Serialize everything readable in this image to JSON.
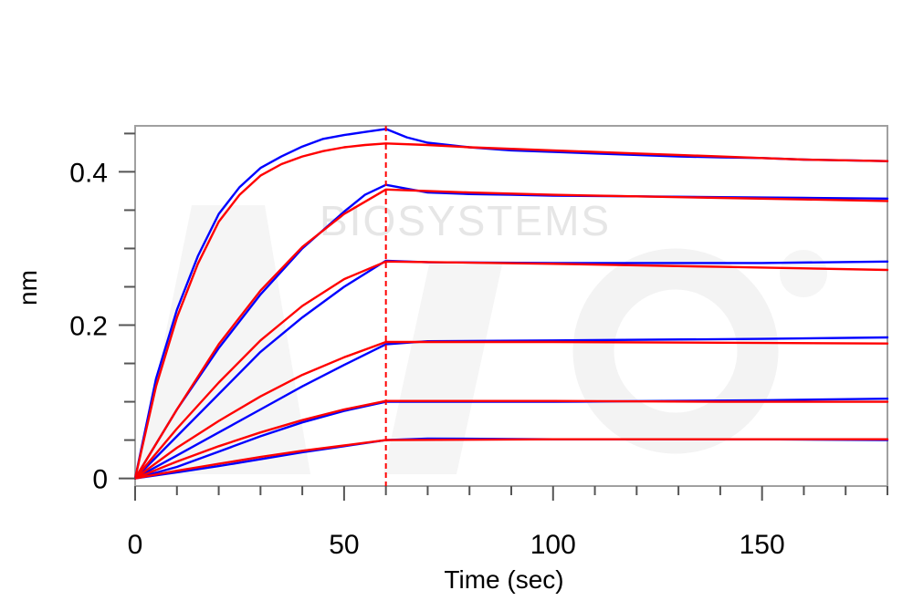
{
  "chart_data": {
    "type": "line",
    "title": "",
    "xlabel": "Time (sec)",
    "ylabel": "nm",
    "xlim": [
      0,
      180
    ],
    "ylim": [
      -0.01,
      0.46
    ],
    "x_ticks": [
      0,
      50,
      100,
      150
    ],
    "x_tick_labels": [
      "0",
      "50",
      "100",
      "150"
    ],
    "y_ticks": [
      0,
      0.2,
      0.4
    ],
    "y_tick_labels": [
      "0",
      "0.2",
      "0.4"
    ],
    "grid": false,
    "legend": "none",
    "annotations": [
      {
        "type": "vertical-dashed-line",
        "x": 60,
        "color": "#ff0000"
      }
    ],
    "watermark": "BIOSYSTEMS",
    "colors": {
      "measured": "#0000ff",
      "fit": "#ff0000",
      "frame": "#a0a0a0"
    },
    "series": [
      {
        "role": "measured",
        "color": "#0000ff",
        "x": [
          0,
          5,
          10,
          15,
          20,
          25,
          30,
          35,
          40,
          45,
          50,
          55,
          60,
          65,
          70,
          80,
          90,
          100,
          110,
          120,
          130,
          140,
          150,
          160,
          170,
          180
        ],
        "y": [
          0.0,
          0.13,
          0.22,
          0.29,
          0.345,
          0.38,
          0.405,
          0.42,
          0.433,
          0.443,
          0.448,
          0.452,
          0.456,
          0.445,
          0.438,
          0.432,
          0.428,
          0.426,
          0.424,
          0.422,
          0.42,
          0.419,
          0.418,
          0.416,
          0.415,
          0.414
        ]
      },
      {
        "role": "fit",
        "color": "#ff0000",
        "x": [
          0,
          5,
          10,
          15,
          20,
          25,
          30,
          35,
          40,
          45,
          50,
          55,
          60,
          70,
          80,
          90,
          100,
          110,
          120,
          130,
          140,
          150,
          160,
          170,
          180
        ],
        "y": [
          0.0,
          0.12,
          0.21,
          0.28,
          0.335,
          0.37,
          0.395,
          0.41,
          0.42,
          0.427,
          0.432,
          0.435,
          0.437,
          0.435,
          0.432,
          0.43,
          0.428,
          0.426,
          0.424,
          0.422,
          0.42,
          0.418,
          0.416,
          0.415,
          0.414
        ]
      },
      {
        "role": "measured",
        "color": "#0000ff",
        "x": [
          0,
          10,
          20,
          30,
          40,
          50,
          55,
          60,
          65,
          70,
          80,
          90,
          100,
          120,
          140,
          160,
          180
        ],
        "y": [
          0.0,
          0.09,
          0.17,
          0.24,
          0.3,
          0.348,
          0.37,
          0.383,
          0.378,
          0.373,
          0.371,
          0.37,
          0.369,
          0.368,
          0.367,
          0.366,
          0.365
        ]
      },
      {
        "role": "fit",
        "color": "#ff0000",
        "x": [
          0,
          10,
          20,
          30,
          40,
          50,
          60,
          80,
          100,
          120,
          140,
          160,
          180
        ],
        "y": [
          0.0,
          0.09,
          0.175,
          0.245,
          0.302,
          0.345,
          0.377,
          0.373,
          0.37,
          0.368,
          0.366,
          0.364,
          0.362
        ]
      },
      {
        "role": "measured",
        "color": "#0000ff",
        "x": [
          0,
          10,
          20,
          30,
          40,
          50,
          60,
          70,
          100,
          150,
          180
        ],
        "y": [
          0.0,
          0.055,
          0.11,
          0.165,
          0.21,
          0.25,
          0.284,
          0.282,
          0.281,
          0.281,
          0.283
        ]
      },
      {
        "role": "fit",
        "color": "#ff0000",
        "x": [
          0,
          10,
          20,
          30,
          40,
          50,
          60,
          100,
          140,
          180
        ],
        "y": [
          0.0,
          0.065,
          0.125,
          0.18,
          0.225,
          0.26,
          0.283,
          0.28,
          0.276,
          0.272
        ]
      },
      {
        "role": "measured",
        "color": "#0000ff",
        "x": [
          0,
          10,
          20,
          30,
          40,
          50,
          60,
          70,
          100,
          150,
          180
        ],
        "y": [
          0.0,
          0.03,
          0.06,
          0.09,
          0.12,
          0.148,
          0.175,
          0.179,
          0.18,
          0.182,
          0.184
        ]
      },
      {
        "role": "fit",
        "color": "#ff0000",
        "x": [
          0,
          10,
          20,
          30,
          40,
          50,
          60,
          100,
          140,
          180
        ],
        "y": [
          0.0,
          0.04,
          0.075,
          0.107,
          0.135,
          0.158,
          0.178,
          0.178,
          0.177,
          0.176
        ]
      },
      {
        "role": "measured",
        "color": "#0000ff",
        "x": [
          0,
          10,
          20,
          30,
          40,
          50,
          60,
          70,
          100,
          150,
          180
        ],
        "y": [
          0.0,
          0.015,
          0.035,
          0.055,
          0.073,
          0.088,
          0.1,
          0.1,
          0.1,
          0.102,
          0.104
        ]
      },
      {
        "role": "fit",
        "color": "#ff0000",
        "x": [
          0,
          10,
          20,
          30,
          40,
          50,
          60,
          100,
          140,
          180
        ],
        "y": [
          0.0,
          0.022,
          0.042,
          0.06,
          0.076,
          0.09,
          0.101,
          0.101,
          0.1,
          0.1
        ]
      },
      {
        "role": "measured",
        "color": "#0000ff",
        "x": [
          0,
          10,
          20,
          30,
          40,
          50,
          60,
          70,
          100,
          150,
          180
        ],
        "y": [
          0.0,
          0.008,
          0.016,
          0.025,
          0.034,
          0.042,
          0.05,
          0.052,
          0.051,
          0.051,
          0.05
        ]
      },
      {
        "role": "fit",
        "color": "#ff0000",
        "x": [
          0,
          10,
          20,
          30,
          40,
          50,
          60,
          100,
          140,
          180
        ],
        "y": [
          0.0,
          0.01,
          0.019,
          0.028,
          0.036,
          0.043,
          0.05,
          0.051,
          0.051,
          0.051
        ]
      }
    ]
  }
}
